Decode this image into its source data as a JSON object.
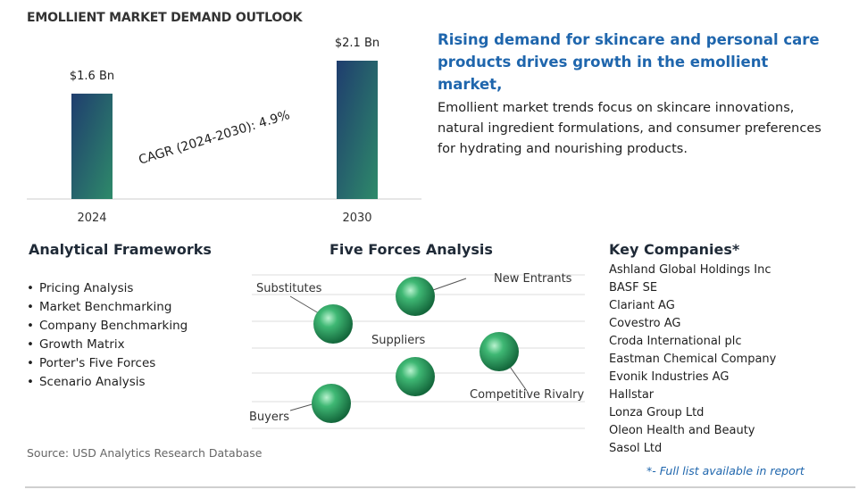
{
  "title": "EMOLLIENT MARKET DEMAND OUTLOOK",
  "chart_data": {
    "type": "bar",
    "categories": [
      "2024",
      "2030"
    ],
    "values": [
      1.6,
      2.1
    ],
    "value_labels": [
      "$1.6 Bn",
      "$2.1 Bn"
    ],
    "ylim": [
      0,
      2.1
    ],
    "annotation": "CAGR (2024-2030):  4.9%",
    "colors": {
      "bar_top": "#1f3d6e",
      "bar_bottom": "#2e8a6a"
    }
  },
  "headline": "Rising demand for skincare and personal care products drives growth in the emollient market,",
  "description": "Emollient market trends focus on skincare innovations, natural ingredient formulations, and consumer preferences for hydrating and nourishing products.",
  "frameworks": {
    "heading": "Analytical Frameworks",
    "items": [
      "Pricing Analysis",
      "Market Benchmarking",
      "Company Benchmarking",
      "Growth Matrix",
      "Porter's Five Forces",
      "Scenario Analysis"
    ]
  },
  "five_forces": {
    "heading": "Five Forces Analysis",
    "labels": {
      "substitutes": "Substitutes",
      "new_entrants": "New Entrants",
      "suppliers": "Suppliers",
      "competitive_rivalry": "Competitive Rivalry",
      "buyers": "Buyers"
    },
    "sphere_color": "#2e9e62"
  },
  "companies": {
    "heading": "Key Companies*",
    "items": [
      "Ashland Global Holdings Inc",
      "BASF SE",
      "Clariant AG",
      "Covestro AG",
      "Croda International plc",
      "Eastman Chemical Company",
      "Evonik Industries AG",
      "Hallstar",
      "Lonza Group Ltd",
      "Oleon Health and Beauty",
      "Sasol Ltd"
    ],
    "footnote": "*- Full list available in report"
  },
  "source": "Source: USD Analytics Research Database"
}
